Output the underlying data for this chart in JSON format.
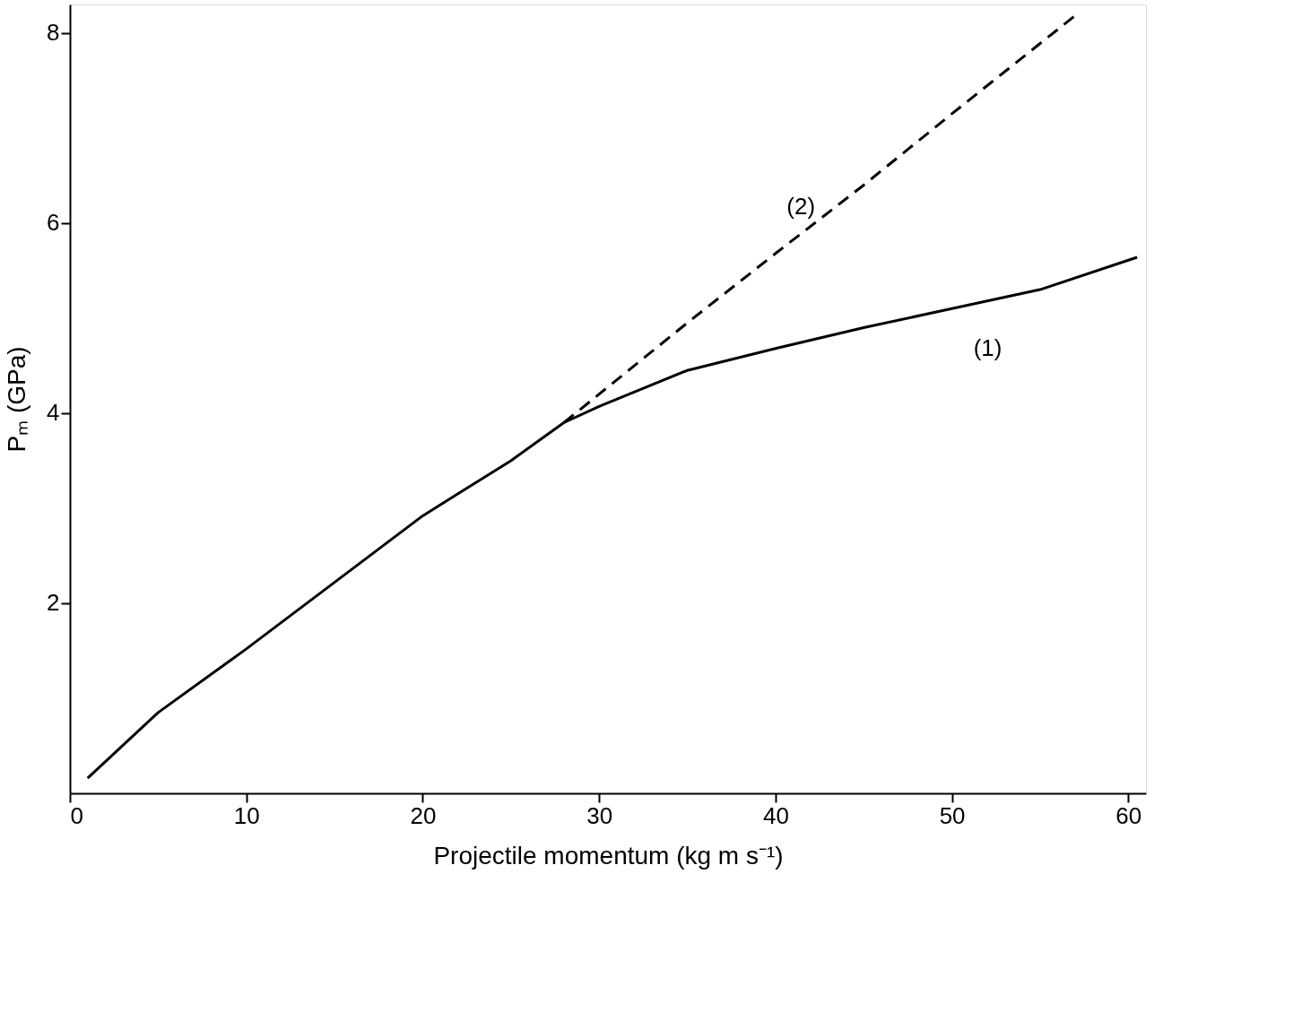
{
  "chart_data": {
    "type": "line",
    "xlabel": "Projectile momentum (kg m s⁻¹)",
    "ylabel": "Pₘ (GPa)",
    "xlim": [
      0,
      61
    ],
    "xticks": [
      0,
      10,
      20,
      30,
      40,
      50,
      60
    ],
    "ylim": [
      0,
      8.3
    ],
    "yticks": [
      2,
      4,
      6,
      8
    ],
    "grid": false,
    "marker": "none",
    "series": [
      {
        "name": "(1)",
        "color": "#000000",
        "line_style": "solid",
        "x": [
          1,
          5,
          10,
          15,
          20,
          25,
          28,
          30,
          35,
          40,
          45,
          50,
          55,
          60.5
        ],
        "values": [
          0.16,
          0.85,
          1.52,
          2.22,
          2.92,
          3.5,
          3.9,
          4.07,
          4.45,
          4.68,
          4.9,
          5.1,
          5.3,
          5.64
        ]
      },
      {
        "name": "(2)",
        "color": "#000000",
        "line_style": "dashed",
        "x": [
          28,
          35,
          40,
          45,
          50,
          57.1
        ],
        "values": [
          3.9,
          4.95,
          5.68,
          6.4,
          7.15,
          8.2
        ]
      }
    ]
  }
}
